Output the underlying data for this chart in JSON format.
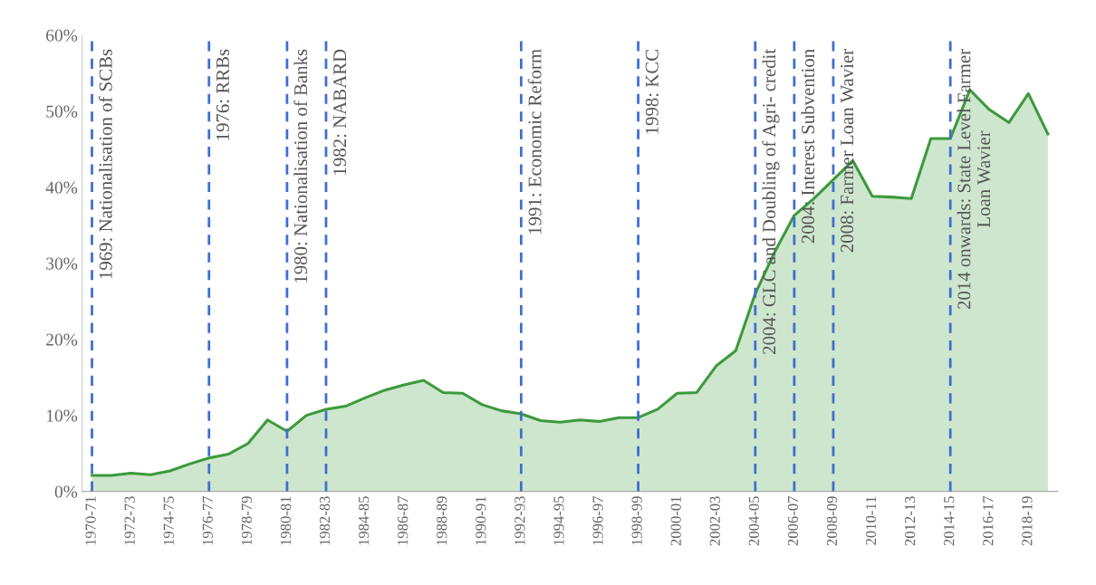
{
  "chart_data": {
    "type": "area",
    "categories": [
      "1970-71",
      null,
      "1972-73",
      null,
      "1974-75",
      null,
      "1976-77",
      null,
      "1978-79",
      null,
      "1980-81",
      null,
      "1982-83",
      null,
      "1984-85",
      null,
      "1986-87",
      null,
      "1988-89",
      null,
      "1990-91",
      null,
      "1992-93",
      null,
      "1994-95",
      null,
      "1996-97",
      null,
      "1998-99",
      null,
      "2000-01",
      null,
      "2002-03",
      null,
      "2004-05",
      null,
      "2006-07",
      null,
      "2008-09",
      null,
      "2010-11",
      null,
      "2012-13",
      null,
      "2014-15",
      null,
      "2016-17",
      null,
      "2018-19",
      null
    ],
    "series": [
      {
        "color": "#3c9a3c",
        "values": [
          2.1,
          2.1,
          2.4,
          2.2,
          2.7,
          3.6,
          4.4,
          4.9,
          6.3,
          9.4,
          7.9,
          10.0,
          10.8,
          11.2,
          12.3,
          13.3,
          14.0,
          14.6,
          13.0,
          12.9,
          11.4,
          10.6,
          10.2,
          9.3,
          9.1,
          9.4,
          9.2,
          9.7,
          9.7,
          10.8,
          12.9,
          13.0,
          16.5,
          18.5,
          26.0,
          31.5,
          36.3,
          38.5,
          41.0,
          43.5,
          38.8,
          38.7,
          38.5,
          46.4,
          46.4,
          52.8,
          50.2,
          48.5,
          52.3,
          47.0
        ]
      }
    ],
    "ylim": [
      0,
      60
    ],
    "yticks": [
      {
        "value": 0,
        "label": "0%"
      },
      {
        "value": 10,
        "label": "10%"
      },
      {
        "value": 20,
        "label": "20%"
      },
      {
        "value": 30,
        "label": "30%"
      },
      {
        "value": 40,
        "label": "40%"
      },
      {
        "value": 50,
        "label": "50%"
      },
      {
        "value": 60,
        "label": "60%"
      }
    ],
    "ref_lines": [
      {
        "axis": "x",
        "value": "1970-71",
        "label": "1969: Nationalisation of SCBs",
        "color": "#3f6fcf",
        "line_style": "dashed"
      },
      {
        "axis": "x",
        "value": "1976-77",
        "label": "1976: RRBs",
        "color": "#3f6fcf",
        "line_style": "dashed"
      },
      {
        "axis": "x",
        "value": "1980-81",
        "label": "1980: Nationalisation of Banks",
        "color": "#3f6fcf",
        "line_style": "dashed"
      },
      {
        "axis": "x",
        "value": "1982-83",
        "label": "1982: NABARD",
        "color": "#3f6fcf",
        "line_style": "dashed"
      },
      {
        "axis": "x",
        "value": "1992-93",
        "label": "1991: Economic Reform",
        "color": "#3f6fcf",
        "line_style": "dashed"
      },
      {
        "axis": "x",
        "value": "1998-99",
        "label": "1998: KCC",
        "color": "#3f6fcf",
        "line_style": "dashed"
      },
      {
        "axis": "x",
        "value": "2004-05",
        "label": "2004: GLC and Doubling of Agri- credit",
        "color": "#3f6fcf",
        "line_style": "dashed"
      },
      {
        "axis": "x",
        "value": "2006-07",
        "label": "2004: Interest Subvention",
        "color": "#3f6fcf",
        "line_style": "dashed"
      },
      {
        "axis": "x",
        "value": "2008-09",
        "label": "2008: Farmer Loan Wavier",
        "color": "#3f6fcf",
        "line_style": "dashed"
      },
      {
        "axis": "x",
        "value": "2014-15",
        "label": "2014 onwards: State Level Farmer\nLoan Wavier",
        "color": "#3f6fcf",
        "line_style": "dashed"
      }
    ],
    "grid": false,
    "legend": false
  }
}
